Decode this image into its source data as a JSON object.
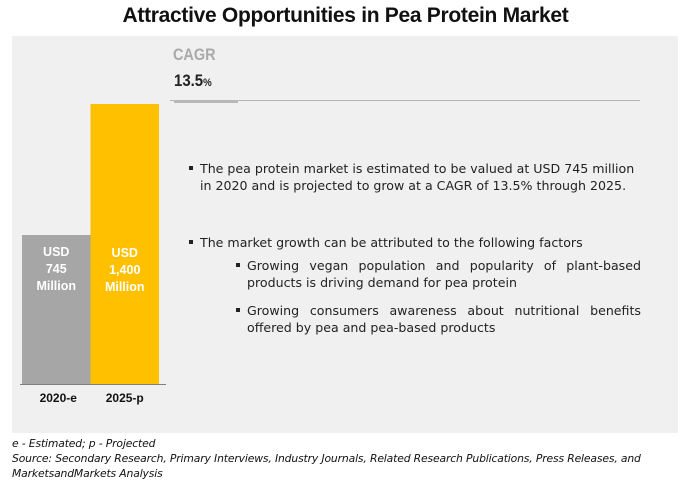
{
  "title": "Attractive Opportunities in Pea Protein Market",
  "cagr": {
    "label": "CAGR",
    "value": "13.5",
    "unit": "%"
  },
  "chart_data": {
    "type": "bar",
    "title": "Attractive Opportunities in Pea Protein Market",
    "categories": [
      "2020-e",
      "2025-p"
    ],
    "values": [
      745,
      1400
    ],
    "unit": "USD Million",
    "data_labels": [
      [
        "USD",
        "745",
        "Million"
      ],
      [
        "USD",
        "1,400",
        "Million"
      ]
    ],
    "colors": [
      "#a6a6a6",
      "#ffc000"
    ],
    "xlabel": "",
    "ylabel": "",
    "ylim": [
      0,
      1500
    ],
    "grid": false,
    "legend": "none"
  },
  "bullets": [
    {
      "level": 1,
      "text": "The pea protein market is estimated to be valued at USD 745 million in 2020 and is projected to grow at a CAGR of 13.5% through 2025."
    },
    {
      "level": 1,
      "text": "The market growth can be attributed to the following factors"
    },
    {
      "level": 2,
      "text": "Growing vegan population and popularity of plant-based products is driving demand for pea protein"
    },
    {
      "level": 2,
      "text": "Growing consumers awareness about nutritional benefits offered by pea and pea-based products"
    }
  ],
  "footer": {
    "legend_note": "e - Estimated; p - Projected",
    "source": "Source: Secondary Research, Primary Interviews, Industry Journals, Related Research Publications, Press Releases, and MarketsandMarkets Analysis"
  },
  "colors": {
    "panel_bg": "#f0f0f0",
    "accent_yellow": "#ffc000",
    "bar_gray": "#a6a6a6"
  }
}
